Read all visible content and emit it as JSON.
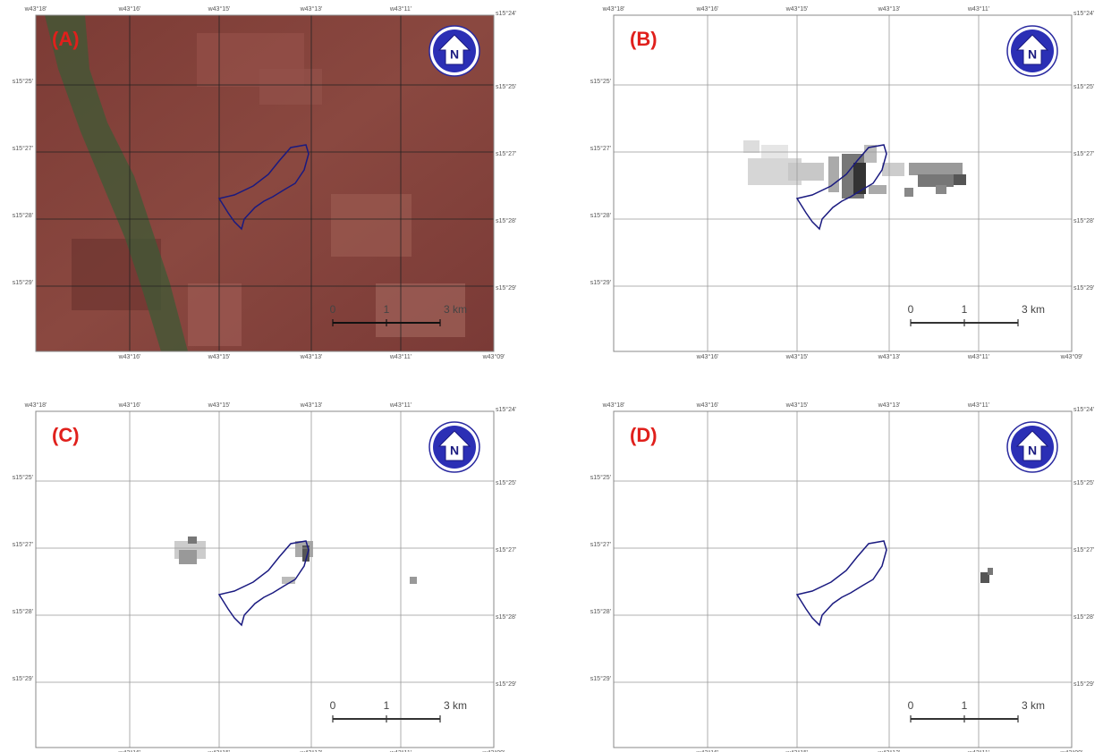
{
  "panels": [
    {
      "label": "(A)"
    },
    {
      "label": "(B)"
    },
    {
      "label": "(C)"
    },
    {
      "label": "(D)"
    }
  ],
  "coordinates": {
    "top": [
      "w43°18'",
      "w43°16'",
      "w43°15'",
      "w43°13'",
      "w43°11'"
    ],
    "corner": "s15°24'",
    "bottom": [
      "w43°16'",
      "w43°15'",
      "w43°13'",
      "w43°11'",
      "w43°09'"
    ],
    "left": [
      "s15°25'",
      "s15°27'",
      "s15°28'",
      "s15°29'"
    ],
    "right": [
      "s15°25'",
      "s15°27'",
      "s15°28'",
      "s15°29'"
    ]
  },
  "scale": [
    "0",
    "1",
    "3 km"
  ],
  "north": "N"
}
